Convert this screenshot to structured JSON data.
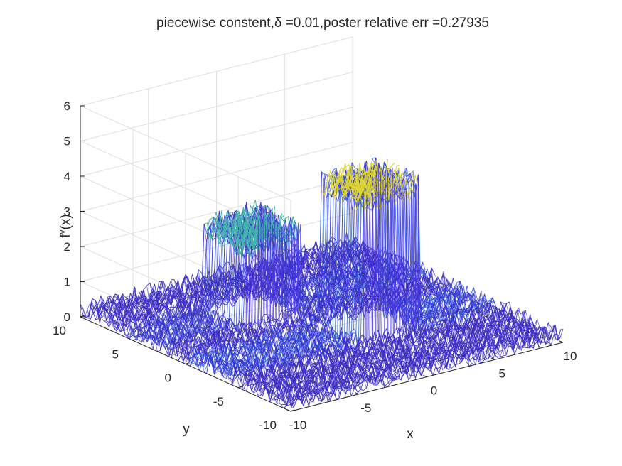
{
  "chart_data": {
    "type": "surface",
    "title": "piecewise constent,δ =0.01,poster relative err =0.27935",
    "xlabel": "x",
    "ylabel": "y",
    "zlabel_base": "f",
    "zlabel_sup": "v",
    "zlabel_tail": "(x)",
    "xlim": [
      -10,
      10
    ],
    "ylim": [
      -10,
      10
    ],
    "zlim": [
      0,
      6
    ],
    "xticks": [
      -10,
      -5,
      0,
      5,
      10
    ],
    "yticks": [
      -10,
      -5,
      0,
      5,
      10
    ],
    "zticks": [
      0,
      1,
      2,
      3,
      4,
      5,
      6
    ],
    "xtick_labels": [
      "-10",
      "-5",
      "0",
      "5",
      "10"
    ],
    "ytick_labels": [
      "-10",
      "-5",
      "0",
      "5",
      "10"
    ],
    "ztick_labels": [
      "0",
      "1",
      "2",
      "3",
      "4",
      "5",
      "6"
    ],
    "grid": true,
    "colormap": "parula",
    "noise_level": 0.3,
    "blocks": [
      {
        "x_range": [
          -4,
          0
        ],
        "y_range": [
          2,
          6
        ],
        "height": 2.5
      },
      {
        "x_range": [
          0,
          4
        ],
        "y_range": [
          -4,
          0
        ],
        "height": 4.2
      }
    ],
    "background_value": 0.2
  },
  "colors": {
    "low": "#3e26a8",
    "mid": "#2ab2c2",
    "high": "#f9c833",
    "grid": "#dfdfdf",
    "axis": "#262626"
  }
}
